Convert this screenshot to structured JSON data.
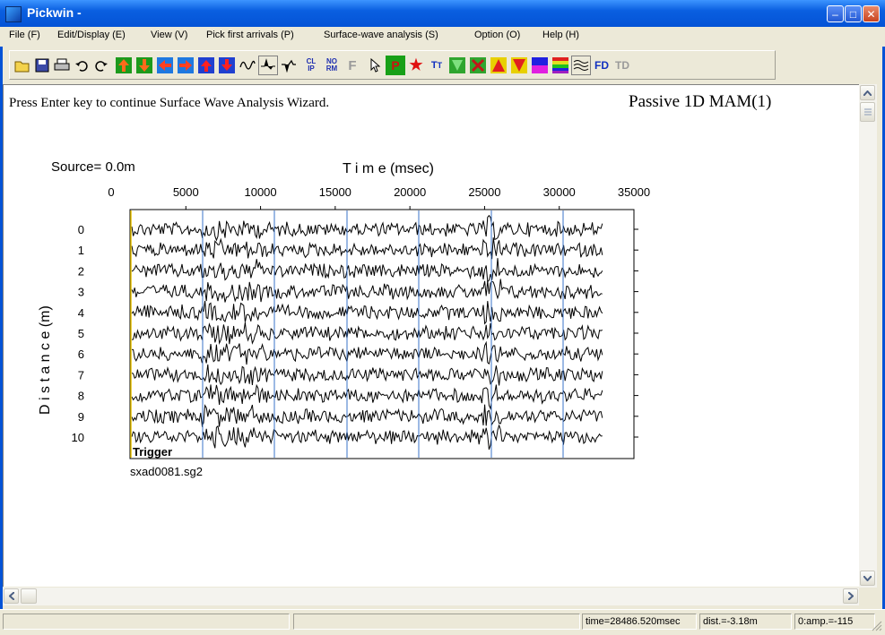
{
  "window": {
    "title": "Pickwin -"
  },
  "menu": [
    "File (F)",
    "Edit/Display (E)",
    "View (V)",
    "Pick first arrivals (P)",
    "Surface-wave analysis (S)",
    "Option (O)",
    "Help (H)"
  ],
  "toolbar": {
    "buttons": [
      {
        "name": "open-icon"
      },
      {
        "name": "save-icon"
      },
      {
        "name": "print-icon"
      },
      {
        "name": "undo-icon"
      },
      {
        "name": "redo-icon"
      },
      {
        "name": "pick-up-arrow-icon"
      },
      {
        "name": "pick-down-arrow-icon"
      },
      {
        "name": "pick-left-arrow-icon"
      },
      {
        "name": "pick-right-arrow-icon"
      },
      {
        "name": "shift-up-icon"
      },
      {
        "name": "shift-down-icon"
      },
      {
        "name": "wiggle-trace-icon"
      },
      {
        "name": "variable-area-icon"
      },
      {
        "name": "negative-area-icon"
      },
      {
        "name": "clip-icon",
        "text": "CL\nIP"
      },
      {
        "name": "normalize-icon",
        "text": "NO\nRM"
      },
      {
        "name": "filter-icon",
        "text": "F"
      },
      {
        "name": "pointer-icon"
      },
      {
        "name": "p-icon",
        "text": "P"
      },
      {
        "name": "star-icon"
      },
      {
        "name": "t-icon",
        "text": "T"
      },
      {
        "name": "green-check-icon"
      },
      {
        "name": "delete-x-icon"
      },
      {
        "name": "triangle-up-icon"
      },
      {
        "name": "triangle-down-icon"
      },
      {
        "name": "color-bar-icon"
      },
      {
        "name": "color-scale-icon"
      },
      {
        "name": "wave-display-icon"
      },
      {
        "name": "fd-icon",
        "text": "FD"
      },
      {
        "name": "td-icon",
        "text": "TD"
      }
    ]
  },
  "main": {
    "instruction": "Press Enter key to continue Surface Wave Analysis Wizard.",
    "mode": "Passive 1D MAM(1)",
    "source_label": "Source=  0.0m",
    "time_label": "T i m e (msec)",
    "distance_label": "D i s t a n c e (m)",
    "time_ticks": [
      "0",
      "5000",
      "10000",
      "15000",
      "20000",
      "25000",
      "30000",
      "35000"
    ],
    "distance_ticks": [
      "0",
      "1",
      "2",
      "3",
      "4",
      "5",
      "6",
      "7",
      "8",
      "9",
      "10"
    ],
    "trigger_label": "Trigger",
    "filename": "sxad0081.sg2"
  },
  "status": {
    "time": "time=28486.520msec",
    "dist": "dist.=-3.18m",
    "amp": "0:amp.=-115"
  },
  "colors": {
    "titlebar": "#0453d6",
    "marker_lines": "#3a73c9",
    "trigger_line": "#e8c200"
  }
}
